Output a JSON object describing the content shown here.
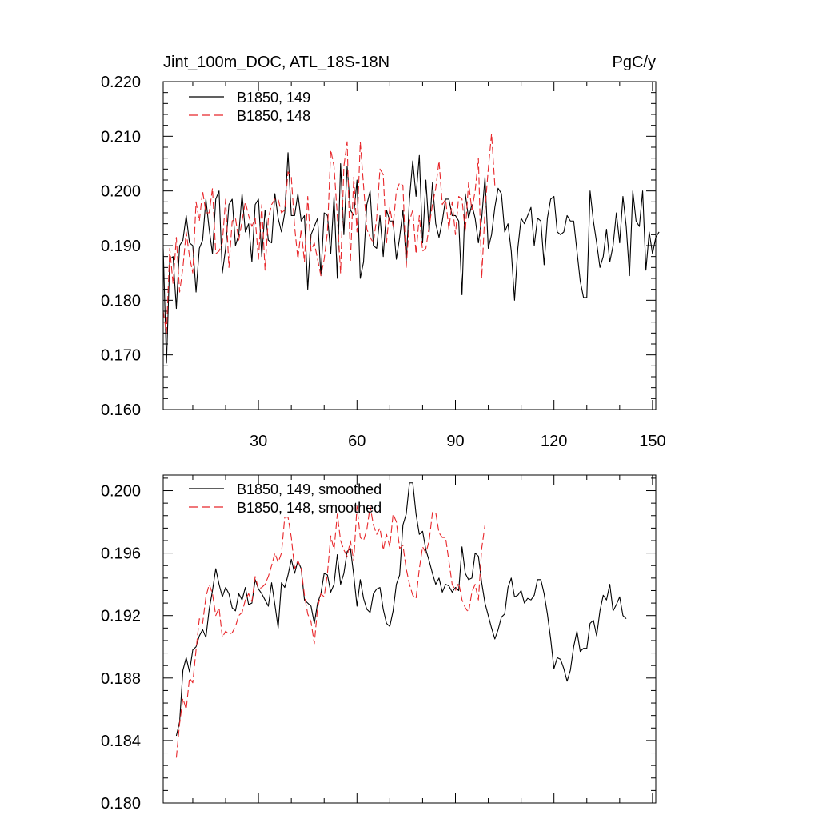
{
  "chart_data": [
    {
      "type": "line",
      "title": "Jint_100m_DOC, ATL_18S-18N",
      "units": "PgC/y",
      "xlim": [
        1,
        151
      ],
      "ylim": [
        0.16,
        0.22
      ],
      "xticks": [
        30,
        60,
        90,
        120,
        150
      ],
      "xtick_labels": [
        "30",
        "60",
        "90",
        "120",
        "150"
      ],
      "yticks": [
        0.16,
        0.17,
        0.18,
        0.19,
        0.2,
        0.21,
        0.22
      ],
      "ytick_labels": [
        "0.160",
        "0.170",
        "0.180",
        "0.190",
        "0.200",
        "0.210",
        "0.220"
      ],
      "legend_position": "top-left",
      "series": [
        {
          "name": "B1850, 149",
          "color": "#000000",
          "dash": "solid",
          "x_start": 1,
          "values": [
            0.1895,
            0.1685,
            0.1875,
            0.188,
            0.1785,
            0.19,
            0.191,
            0.1955,
            0.1905,
            0.19,
            0.1815,
            0.1895,
            0.191,
            0.1985,
            0.193,
            0.1885,
            0.1985,
            0.2,
            0.185,
            0.1895,
            0.1975,
            0.1985,
            0.19,
            0.192,
            0.1995,
            0.1925,
            0.194,
            0.187,
            0.1975,
            0.1985,
            0.188,
            0.1965,
            0.191,
            0.1905,
            0.1995,
            0.195,
            0.1925,
            0.196,
            0.207,
            0.1955,
            0.1955,
            0.1995,
            0.1945,
            0.1955,
            0.182,
            0.192,
            0.1935,
            0.195,
            0.1845,
            0.196,
            0.1955,
            0.1885,
            0.199,
            0.184,
            0.205,
            0.192,
            0.2045,
            0.1965,
            0.1955,
            0.202,
            0.184,
            0.187,
            0.1975,
            0.2,
            0.19,
            0.1895,
            0.1955,
            0.188,
            0.1965,
            0.1945,
            0.1945,
            0.1875,
            0.1915,
            0.1965,
            0.187,
            0.1985,
            0.2055,
            0.199,
            0.2065,
            0.1905,
            0.202,
            0.1925,
            0.2015,
            0.194,
            0.1915,
            0.1945,
            0.1985,
            0.1985,
            0.1955,
            0.1955,
            0.1945,
            0.181,
            0.1995,
            0.195,
            0.1975,
            0.195,
            0.1905,
            0.195,
            0.2025,
            0.1895,
            0.192,
            0.197,
            0.2005,
            0.1995,
            0.1925,
            0.194,
            0.189,
            0.18,
            0.1895,
            0.195,
            0.194,
            0.1955,
            0.197,
            0.19,
            0.195,
            0.1945,
            0.1865,
            0.195,
            0.1985,
            0.199,
            0.1925,
            0.192,
            0.1925,
            0.1955,
            0.1945,
            0.1945,
            0.189,
            0.1835,
            0.1805,
            0.1805,
            0.2,
            0.1945,
            0.1905,
            0.186,
            0.188,
            0.193,
            0.187,
            0.19,
            0.196,
            0.1905,
            0.199,
            0.1935,
            0.1845,
            0.2,
            0.1945,
            0.1935,
            0.2,
            0.1855,
            0.1925,
            0.1885,
            0.1915,
            0.1925
          ]
        },
        {
          "name": "B1850, 148",
          "color": "#e8262a",
          "dash": "dashed",
          "x_start": 1,
          "values": [
            0.178,
            0.174,
            0.1895,
            0.183,
            0.1915,
            0.1815,
            0.186,
            0.1925,
            0.188,
            0.185,
            0.198,
            0.1945,
            0.2,
            0.196,
            0.196,
            0.2005,
            0.1885,
            0.189,
            0.1905,
            0.1985,
            0.186,
            0.1945,
            0.195,
            0.191,
            0.1945,
            0.198,
            0.1955,
            0.1935,
            0.195,
            0.1875,
            0.1975,
            0.1855,
            0.195,
            0.1975,
            0.1985,
            0.1985,
            0.196,
            0.1965,
            0.2035,
            0.2025,
            0.1935,
            0.1875,
            0.193,
            0.187,
            0.199,
            0.189,
            0.1905,
            0.1875,
            0.1845,
            0.1875,
            0.1925,
            0.2075,
            0.2045,
            0.1955,
            0.185,
            0.2045,
            0.209,
            0.187,
            0.2025,
            0.1925,
            0.209,
            0.201,
            0.193,
            0.1915,
            0.1905,
            0.195,
            0.204,
            0.203,
            0.1905,
            0.197,
            0.1935,
            0.2,
            0.2015,
            0.201,
            0.186,
            0.1945,
            0.1965,
            0.1885,
            0.1955,
            0.189,
            0.1895,
            0.1935,
            0.1975,
            0.2005,
            0.2055,
            0.1975,
            0.1985,
            0.193,
            0.198,
            0.192,
            0.199,
            0.1985,
            0.1925,
            0.2015,
            0.1965,
            0.2,
            0.206,
            0.184,
            0.1965,
            0.204,
            0.2105,
            0.201
          ]
        }
      ]
    },
    {
      "type": "line",
      "xlim": [
        1,
        151
      ],
      "ylim": [
        0.18,
        0.201
      ],
      "xticks": [
        30,
        60,
        90,
        120,
        150
      ],
      "yticks": [
        0.18,
        0.184,
        0.188,
        0.192,
        0.196,
        0.2
      ],
      "ytick_labels": [
        "0.180",
        "0.184",
        "0.188",
        "0.192",
        "0.196",
        "0.200"
      ],
      "legend_position": "top-left",
      "series": [
        {
          "name": "B1850, 149, smoothed",
          "color": "#000000",
          "dash": "solid",
          "x_start": 5,
          "values": [
            0.1843,
            0.1852,
            0.1885,
            0.1893,
            0.1884,
            0.1898,
            0.19,
            0.1907,
            0.1911,
            0.1906,
            0.1924,
            0.1936,
            0.195,
            0.194,
            0.1932,
            0.1938,
            0.1934,
            0.1925,
            0.1923,
            0.1934,
            0.193,
            0.1938,
            0.1927,
            0.1928,
            0.1943,
            0.1937,
            0.1934,
            0.193,
            0.1926,
            0.1941,
            0.1927,
            0.1912,
            0.1941,
            0.1938,
            0.1946,
            0.1956,
            0.1947,
            0.1955,
            0.195,
            0.193,
            0.1928,
            0.1926,
            0.1915,
            0.1928,
            0.1934,
            0.1947,
            0.1946,
            0.1935,
            0.194,
            0.1959,
            0.194,
            0.1947,
            0.1961,
            0.1963,
            0.1946,
            0.1926,
            0.1943,
            0.1931,
            0.1924,
            0.1922,
            0.1934,
            0.1937,
            0.1938,
            0.1924,
            0.1915,
            0.1913,
            0.1923,
            0.194,
            0.1946,
            0.1978,
            0.1985,
            0.2005,
            0.2005,
            0.1985,
            0.1972,
            0.1974,
            0.1962,
            0.1955,
            0.1947,
            0.194,
            0.1944,
            0.1935,
            0.194,
            0.1939,
            0.1935,
            0.1938,
            0.1936,
            0.1964,
            0.1947,
            0.1943,
            0.1944,
            0.196,
            0.1958,
            0.1941,
            0.1928,
            0.192,
            0.1912,
            0.1905,
            0.1911,
            0.1919,
            0.1921,
            0.1938,
            0.1944,
            0.1932,
            0.1933,
            0.1936,
            0.1928,
            0.1931,
            0.193,
            0.1933,
            0.1943,
            0.1943,
            0.1934,
            0.1921,
            0.1905,
            0.1886,
            0.1893,
            0.1892,
            0.1886,
            0.1878,
            0.1885,
            0.19,
            0.191,
            0.1897,
            0.1899,
            0.1899,
            0.1915,
            0.1917,
            0.1907,
            0.1923,
            0.1933,
            0.193,
            0.194,
            0.1923,
            0.1927,
            0.1932,
            0.192,
            0.1918
          ]
        },
        {
          "name": "B1850, 148, smoothed",
          "color": "#e8262a",
          "dash": "dashed",
          "x_start": 5,
          "values": [
            0.1829,
            0.1851,
            0.1867,
            0.186,
            0.188,
            0.1877,
            0.1898,
            0.1918,
            0.1915,
            0.1932,
            0.194,
            0.1934,
            0.192,
            0.1925,
            0.1906,
            0.191,
            0.1908,
            0.1909,
            0.1913,
            0.192,
            0.1922,
            0.193,
            0.1934,
            0.1929,
            0.1945,
            0.1937,
            0.1938,
            0.194,
            0.1945,
            0.1952,
            0.196,
            0.1954,
            0.196,
            0.1983,
            0.1983,
            0.197,
            0.195,
            0.1955,
            0.195,
            0.1933,
            0.1921,
            0.1916,
            0.1902,
            0.1925,
            0.1934,
            0.1932,
            0.1947,
            0.1971,
            0.1962,
            0.1985,
            0.1968,
            0.1962,
            0.1958,
            0.1968,
            0.1955,
            0.199,
            0.197,
            0.1968,
            0.1975,
            0.199,
            0.1978,
            0.1972,
            0.1976,
            0.1962,
            0.1972,
            0.1964,
            0.1985,
            0.198,
            0.1963,
            0.1965,
            0.195,
            0.194,
            0.1933,
            0.1931,
            0.195,
            0.1964,
            0.196,
            0.1968,
            0.1986,
            0.1986,
            0.1973,
            0.197,
            0.197,
            0.1955,
            0.194,
            0.1936,
            0.1941,
            0.193,
            0.1925,
            0.1922,
            0.1935,
            0.194,
            0.193,
            0.1963,
            0.1978
          ]
        }
      ]
    }
  ]
}
